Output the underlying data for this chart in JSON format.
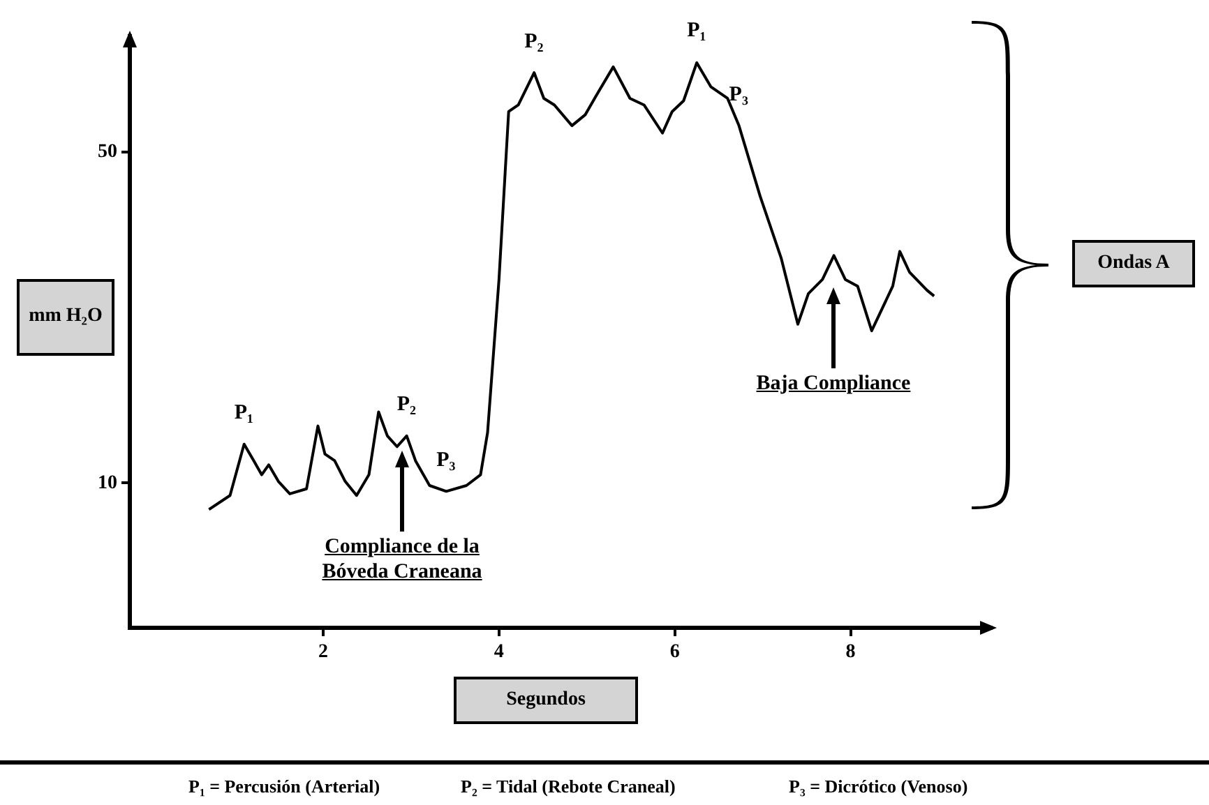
{
  "chart_data": {
    "type": "line",
    "xlabel": "Segundos",
    "ylabel": "mm H₂O",
    "x": [
      0.7,
      0.94,
      1.1,
      1.21,
      1.3,
      1.38,
      1.49,
      1.62,
      1.81,
      1.94,
      2.02,
      2.13,
      2.25,
      2.38,
      2.52,
      2.63,
      2.73,
      2.84,
      2.95,
      3.05,
      3.21,
      3.4,
      3.63,
      3.79,
      3.87,
      4.0,
      4.11,
      4.22,
      4.4,
      4.51,
      4.63,
      4.83,
      4.98,
      5.11,
      5.3,
      5.49,
      5.65,
      5.86,
      5.97,
      6.1,
      6.25,
      6.41,
      6.6,
      6.73,
      6.97,
      7.21,
      7.4,
      7.52,
      7.68,
      7.81,
      7.94,
      8.08,
      8.24,
      8.48,
      8.56,
      8.67,
      8.87,
      8.95
    ],
    "series": [
      {
        "color": "#000000",
        "values": [
          6.8,
          8.5,
          14.7,
          12.7,
          11.0,
          12.2,
          10.2,
          8.7,
          9.3,
          16.9,
          13.5,
          12.7,
          10.2,
          8.5,
          11.0,
          18.6,
          15.7,
          14.4,
          15.7,
          12.7,
          9.7,
          9.0,
          9.7,
          11.0,
          16.1,
          34.6,
          54.9,
          55.7,
          59.6,
          56.5,
          55.7,
          53.2,
          54.5,
          56.9,
          60.3,
          56.5,
          55.7,
          52.3,
          54.9,
          56.2,
          60.8,
          57.9,
          56.5,
          53.2,
          44.7,
          37.2,
          29.2,
          32.9,
          34.6,
          37.5,
          34.6,
          33.8,
          28.4,
          33.8,
          38.0,
          35.5,
          33.3,
          32.6
        ]
      }
    ],
    "xlim": [
      -0.2,
      9.6
    ],
    "xticks": [
      2,
      4,
      6,
      8
    ],
    "ylim": [
      -7.5,
      64
    ],
    "yticks": [
      10,
      50
    ],
    "grid": false,
    "legend": false,
    "marker": "none",
    "line_style": "solid",
    "annotations": [
      "Ondas A",
      "P₁ = Percusión (Arterial)",
      "P₂ = Tidal (Rebote Craneal)",
      "P₃ = Dicrótico (Venoso)",
      {
        "text": "P₁",
        "x": 1.1,
        "y": 14.7
      },
      {
        "text": "P₂",
        "x": 2.95,
        "y": 15.7
      },
      {
        "text": "P₃",
        "x": 3.4,
        "y": 9.0
      },
      {
        "text": "P₂",
        "x": 4.4,
        "y": 59.6
      },
      {
        "text": "P₁",
        "x": 6.25,
        "y": 60.8
      },
      {
        "text": "P₃",
        "x": 6.73,
        "y": 53.2
      },
      "Compliance de la Bóveda Craneana",
      "Baja Compliance"
    ]
  }
}
